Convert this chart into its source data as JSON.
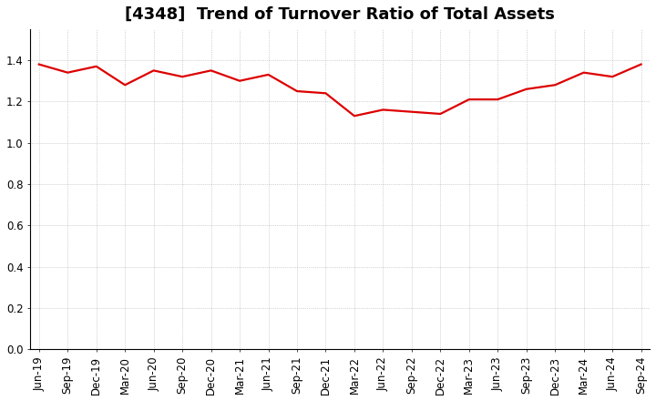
{
  "title": "[4348]  Trend of Turnover Ratio of Total Assets",
  "x_labels": [
    "Jun-19",
    "Sep-19",
    "Dec-19",
    "Mar-20",
    "Jun-20",
    "Sep-20",
    "Dec-20",
    "Mar-21",
    "Jun-21",
    "Sep-21",
    "Dec-21",
    "Mar-22",
    "Jun-22",
    "Sep-22",
    "Dec-22",
    "Mar-23",
    "Jun-23",
    "Sep-23",
    "Dec-23",
    "Mar-24",
    "Jun-24",
    "Sep-24"
  ],
  "y_values": [
    1.38,
    1.34,
    1.37,
    1.28,
    1.35,
    1.32,
    1.35,
    1.3,
    1.33,
    1.25,
    1.24,
    1.13,
    1.16,
    1.15,
    1.14,
    1.21,
    1.21,
    1.26,
    1.28,
    1.34,
    1.32,
    1.38
  ],
  "ylim": [
    0.0,
    1.55
  ],
  "yticks": [
    0.0,
    0.2,
    0.4,
    0.6,
    0.8,
    1.0,
    1.2,
    1.4
  ],
  "line_color": "#dd0000",
  "line_width": 1.6,
  "background_color": "#ffffff",
  "grid_color": "#999999",
  "title_fontsize": 13,
  "tick_fontsize": 8.5
}
